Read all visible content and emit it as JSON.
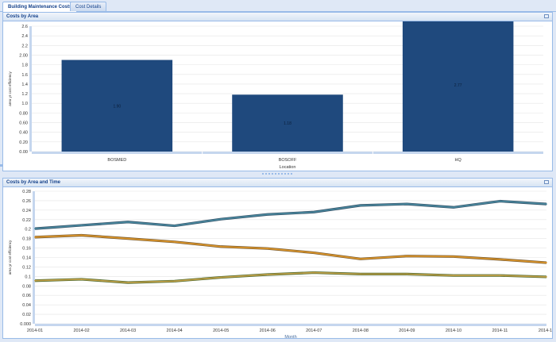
{
  "tabs": [
    {
      "label": "Building Maintenance Costs",
      "active": true
    },
    {
      "label": "Cost Details",
      "active": false
    }
  ],
  "panels": {
    "area": {
      "title": "Costs by Area"
    },
    "time": {
      "title": "Costs by Area and Time"
    }
  },
  "colors": {
    "bar": "#1f497d",
    "series": [
      "#4a8aa0",
      "#e0982a",
      "#c7a34a"
    ],
    "series_shadow": [
      "#35546a",
      "#7a5b2e",
      "#4f6a2d"
    ]
  },
  "chart_data": [
    {
      "type": "bar",
      "xlabel": "Location",
      "ylabel": "area yr cost efficiency",
      "categories": [
        "BOSMED",
        "BOSOFF",
        "HQ"
      ],
      "values": [
        1.9,
        1.18,
        2.77
      ],
      "value_labels": [
        "1.90",
        "1.18",
        "2.77"
      ],
      "yticks": [
        "0.00",
        "0.20",
        "0.40",
        "0.60",
        "0.80",
        "1.0",
        "1.2",
        "1.4",
        "1.6",
        "1.8",
        "2.00",
        "2.2",
        "2.4",
        "2.6"
      ],
      "ylim": [
        0,
        2.6
      ],
      "grid": true
    },
    {
      "type": "line",
      "xlabel": "Month",
      "ylabel": "area yr cost efficiency",
      "x": [
        "2014-01",
        "2014-02",
        "2014-03",
        "2014-04",
        "2014-05",
        "2014-06",
        "2014-07",
        "2014-08",
        "2014-09",
        "2014-10",
        "2014-11",
        "2014-12"
      ],
      "series": [
        {
          "values": [
            0.201,
            0.208,
            0.215,
            0.207,
            0.221,
            0.231,
            0.236,
            0.25,
            0.253,
            0.246,
            0.259,
            0.253
          ]
        },
        {
          "values": [
            0.183,
            0.187,
            0.18,
            0.173,
            0.163,
            0.159,
            0.15,
            0.137,
            0.143,
            0.142,
            0.136,
            0.129
          ]
        },
        {
          "values": [
            0.091,
            0.094,
            0.087,
            0.09,
            0.098,
            0.104,
            0.108,
            0.105,
            0.105,
            0.102,
            0.102,
            0.099
          ]
        }
      ],
      "yticks": [
        "0.000",
        "0.02",
        "0.04",
        "0.06",
        "0.08",
        "0.1",
        "0.12",
        "0.14",
        "0.16",
        "0.18",
        "0.2",
        "0.22",
        "0.24",
        "0.26",
        "0.28"
      ],
      "ylim": [
        0,
        0.28
      ],
      "grid": true
    }
  ]
}
